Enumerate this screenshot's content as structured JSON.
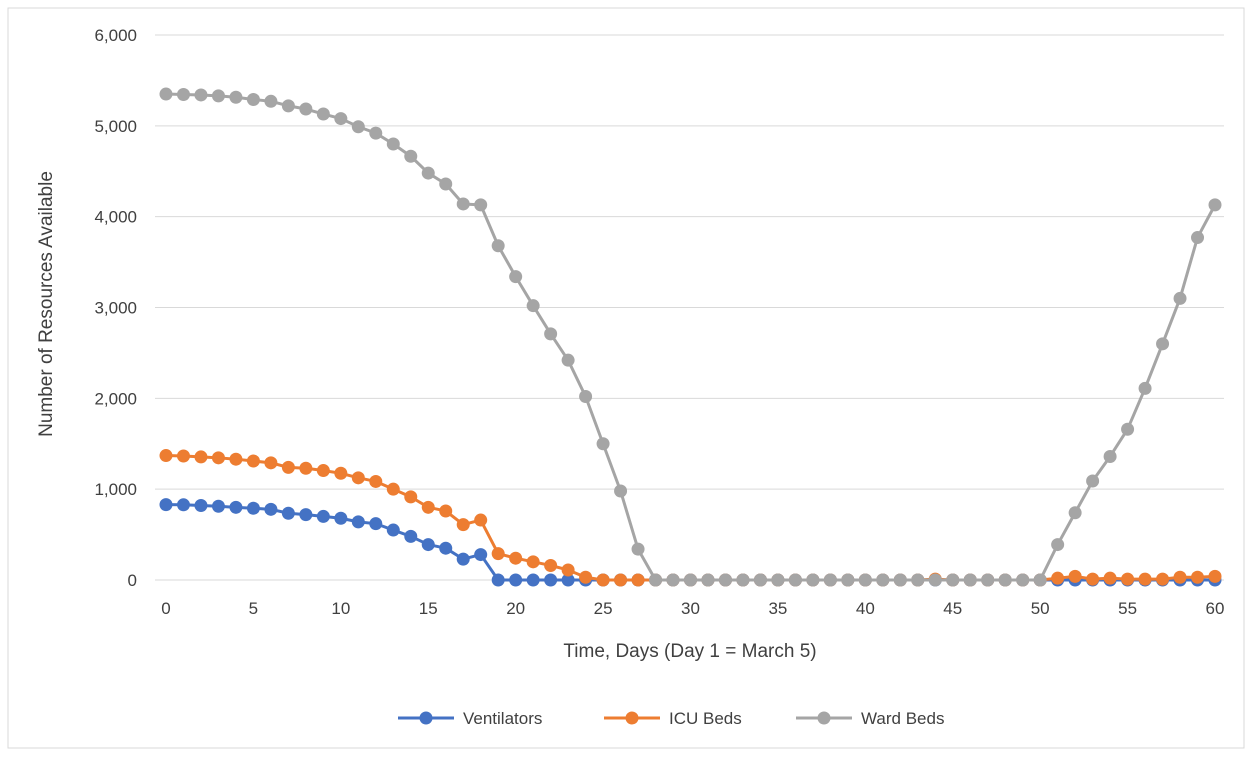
{
  "chart_data": {
    "type": "line",
    "title": "",
    "xlabel": "Time, Days (Day 1 = March 5)",
    "ylabel": "Number of Resources Available",
    "xlim": [
      0,
      60
    ],
    "ylim": [
      0,
      6000
    ],
    "x_ticks": [
      0,
      5,
      10,
      15,
      20,
      25,
      30,
      35,
      40,
      45,
      50,
      55,
      60
    ],
    "x_tick_labels": [
      "0",
      "5",
      "10",
      "15",
      "20",
      "25",
      "30",
      "35",
      "40",
      "45",
      "50",
      "55",
      "60"
    ],
    "y_ticks": [
      0,
      1000,
      2000,
      3000,
      4000,
      5000,
      6000
    ],
    "y_tick_labels": [
      "0",
      "1,000",
      "2,000",
      "3,000",
      "4,000",
      "5,000",
      "6,000"
    ],
    "grid": "horizontal",
    "legend_position": "bottom",
    "x": [
      0,
      1,
      2,
      3,
      4,
      5,
      6,
      7,
      8,
      9,
      10,
      11,
      12,
      13,
      14,
      15,
      16,
      17,
      18,
      19,
      20,
      21,
      22,
      23,
      24,
      25,
      26,
      27,
      28,
      29,
      30,
      31,
      32,
      33,
      34,
      35,
      36,
      37,
      38,
      39,
      40,
      41,
      42,
      43,
      44,
      45,
      46,
      47,
      48,
      49,
      50,
      51,
      52,
      53,
      54,
      55,
      56,
      57,
      58,
      59,
      60
    ],
    "series": [
      {
        "name": "Ventilators",
        "color": "#4472C4",
        "values": [
          830,
          828,
          820,
          812,
          800,
          790,
          778,
          735,
          720,
          700,
          680,
          640,
          620,
          550,
          480,
          390,
          350,
          230,
          280,
          0,
          0,
          0,
          0,
          0,
          0,
          0,
          0,
          0,
          0,
          0,
          0,
          0,
          0,
          0,
          0,
          0,
          0,
          0,
          0,
          0,
          0,
          0,
          0,
          0,
          0,
          0,
          0,
          0,
          0,
          0,
          0,
          0,
          0,
          0,
          0,
          0,
          0,
          0,
          0,
          0,
          0
        ]
      },
      {
        "name": "ICU Beds",
        "color": "#ED7D31",
        "values": [
          1370,
          1365,
          1355,
          1345,
          1330,
          1310,
          1290,
          1240,
          1230,
          1205,
          1175,
          1125,
          1085,
          1000,
          915,
          800,
          760,
          610,
          660,
          290,
          240,
          200,
          160,
          110,
          30,
          0,
          0,
          0,
          0,
          0,
          0,
          0,
          0,
          0,
          0,
          0,
          0,
          0,
          0,
          0,
          0,
          0,
          0,
          0,
          10,
          0,
          0,
          0,
          0,
          0,
          0,
          20,
          40,
          10,
          20,
          10,
          10,
          10,
          30,
          30,
          40
        ]
      },
      {
        "name": "Ward Beds",
        "color": "#A5A5A5",
        "values": [
          5350,
          5345,
          5340,
          5330,
          5315,
          5290,
          5270,
          5220,
          5185,
          5130,
          5080,
          4990,
          4920,
          4800,
          4665,
          4480,
          4360,
          4140,
          4130,
          3680,
          3340,
          3020,
          2710,
          2420,
          2020,
          1500,
          980,
          340,
          0,
          0,
          0,
          0,
          0,
          0,
          0,
          0,
          0,
          0,
          0,
          0,
          0,
          0,
          0,
          0,
          0,
          0,
          0,
          0,
          0,
          0,
          0,
          390,
          740,
          1090,
          1360,
          1660,
          2110,
          2600,
          3100,
          3770,
          4130
        ]
      }
    ]
  }
}
